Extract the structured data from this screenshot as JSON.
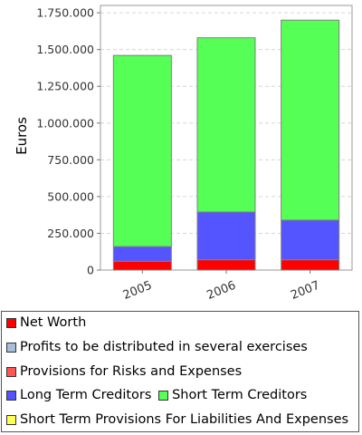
{
  "chart_data": {
    "type": "bar",
    "stacked": true,
    "categories": [
      "2005",
      "2006",
      "2007"
    ],
    "ylabel": "Euros",
    "ylim": [
      0,
      1800000
    ],
    "yticks": [
      0,
      250000,
      500000,
      750000,
      1000000,
      1250000,
      1500000,
      1750000
    ],
    "ytick_labels": [
      "0",
      "250.000",
      "500.000",
      "750.000",
      "1.000.000",
      "1.250.000",
      "1.500.000",
      "1.750.000"
    ],
    "grid": true,
    "legend_position": "bottom",
    "series": [
      {
        "name": "Net Worth",
        "color": "#ff0000",
        "values": [
          60000,
          70000,
          70000
        ]
      },
      {
        "name": "Profits to be distributed in several exercises",
        "color": "#a6bfd9",
        "values": [
          0,
          0,
          0
        ]
      },
      {
        "name": "Provisions for Risks and Expenses",
        "color": "#ff5555",
        "values": [
          0,
          0,
          0
        ]
      },
      {
        "name": "Long Term Creditors",
        "color": "#5555ff",
        "values": [
          100000,
          325000,
          270000
        ]
      },
      {
        "name": "Short Term Creditors",
        "color": "#55ff55",
        "values": [
          1300000,
          1185000,
          1360000
        ]
      },
      {
        "name": "Short Term Provisions For Liabilities And Expenses",
        "color": "#ffff55",
        "values": [
          0,
          0,
          0
        ]
      }
    ]
  }
}
